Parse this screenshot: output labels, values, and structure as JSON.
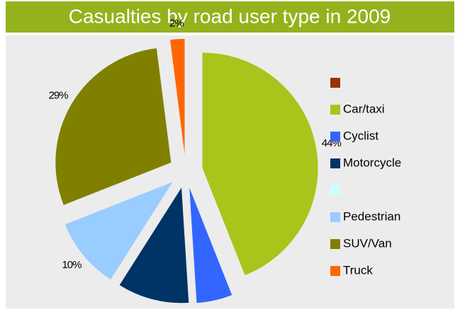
{
  "chart_data": {
    "type": "pie",
    "title": "Casualties by road user type in 2009",
    "categories": [
      null,
      "Car/taxi",
      "Cyclist",
      "Motorcycle",
      null,
      "Pedestrian",
      "SUV/Van",
      "Truck"
    ],
    "values": [
      0,
      44,
      5,
      10,
      0,
      10,
      29,
      2
    ],
    "value_labels": [
      null,
      "44%",
      "5%",
      "10%",
      null,
      "10%",
      "29%",
      "2%"
    ],
    "colors": [
      "#993300",
      "#a9c41a",
      "#3366ff",
      "#003366",
      "#ccffff",
      "#99ccff",
      "#808000",
      "#ff6600"
    ],
    "legend": "right"
  }
}
